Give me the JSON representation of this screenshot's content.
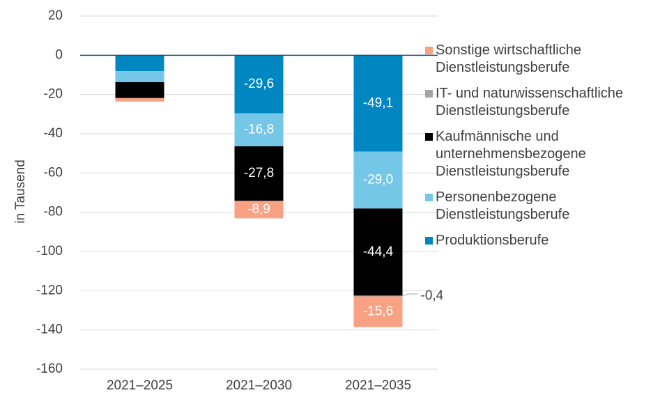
{
  "chart_data": {
    "type": "bar",
    "stacked": true,
    "y_label": "in Tausend",
    "categories": [
      "2021–2025",
      "2021–2030",
      "2021–2035"
    ],
    "series": [
      {
        "name": "Produktionsberufe",
        "color": "#0087c1",
        "values": [
          -8.1,
          -29.6,
          -49.1
        ],
        "value_labels": [
          null,
          "-29,6",
          "-49,1"
        ]
      },
      {
        "name": "Personenbezogene Dienstleistungsberufe",
        "color": "#74c7e7",
        "values": [
          -5.6,
          -16.8,
          -29.0
        ],
        "value_labels": [
          null,
          "-16,8",
          "-29,0"
        ]
      },
      {
        "name": "Kaufmännische und unternehmensbezogene Dienstleistungsberufe",
        "color": "#000000",
        "values": [
          -8.1,
          -27.8,
          -44.4
        ],
        "value_labels": [
          null,
          "-27,8",
          "-44,4"
        ]
      },
      {
        "name": "IT- und naturwissenschaftliche Dienstleistungsberufe",
        "color": "#a5a5a5",
        "values": [
          -0.1,
          0,
          -0.4
        ],
        "value_labels": [
          null,
          null,
          "-0,4"
        ]
      },
      {
        "name": "Sonstige wirtschaftliche Dienstleistungsberufe",
        "color": "#f9a283",
        "values": [
          -1.7,
          -8.9,
          -15.6
        ],
        "value_labels": [
          null,
          "-8,9",
          "-15,6"
        ]
      }
    ],
    "ylim": [
      -160,
      20
    ],
    "yticks": [
      20,
      0,
      -20,
      -40,
      -60,
      -80,
      -100,
      -120,
      -140,
      -160
    ],
    "grid": true,
    "legend": "right"
  }
}
